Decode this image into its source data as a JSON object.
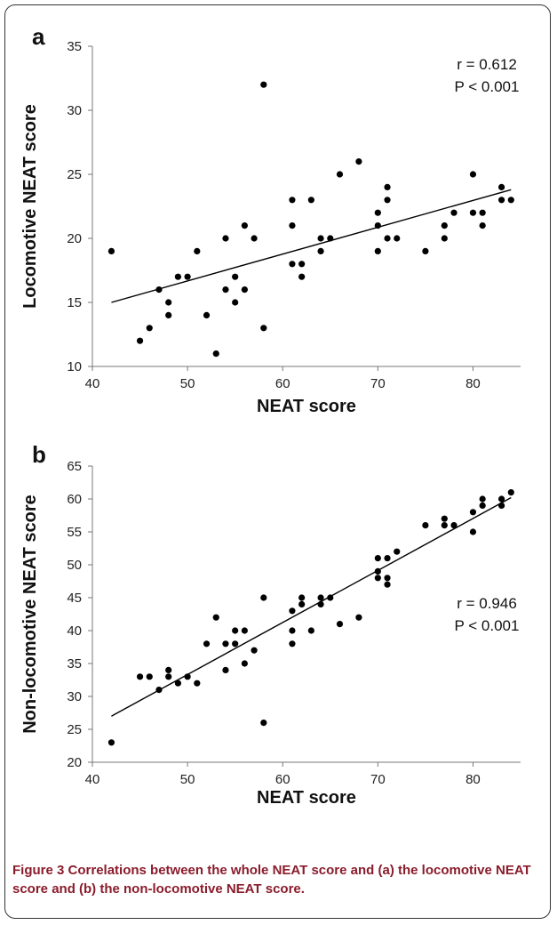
{
  "caption": {
    "label": "Figure 3",
    "text": "Correlations between the whole NEAT score and (a) the locomotive NEAT score and (b) the non-locomotive NEAT score."
  },
  "chart_data": [
    {
      "type": "scatter",
      "panel": "a",
      "xlabel": "NEAT score",
      "ylabel": "Locomotive NEAT score",
      "xlim": [
        40,
        85
      ],
      "ylim": [
        10,
        35
      ],
      "xticks": [
        40,
        50,
        60,
        70,
        80
      ],
      "yticks": [
        10,
        15,
        20,
        25,
        30,
        35
      ],
      "grid": false,
      "stats": [
        "r = 0.612",
        "P < 0.001"
      ],
      "trendline": {
        "x": [
          42,
          84
        ],
        "y": [
          15.0,
          23.8
        ]
      },
      "points": [
        [
          42,
          19
        ],
        [
          45,
          12
        ],
        [
          46,
          13
        ],
        [
          47,
          16
        ],
        [
          48,
          15
        ],
        [
          48,
          14
        ],
        [
          49,
          17
        ],
        [
          50,
          17
        ],
        [
          51,
          19
        ],
        [
          52,
          14
        ],
        [
          53,
          11
        ],
        [
          54,
          20
        ],
        [
          54,
          16
        ],
        [
          55,
          17
        ],
        [
          55,
          15
        ],
        [
          56,
          21
        ],
        [
          56,
          16
        ],
        [
          57,
          20
        ],
        [
          58,
          32
        ],
        [
          58,
          13
        ],
        [
          61,
          23
        ],
        [
          61,
          21
        ],
        [
          61,
          18
        ],
        [
          62,
          18
        ],
        [
          62,
          17
        ],
        [
          63,
          23
        ],
        [
          64,
          20
        ],
        [
          64,
          19
        ],
        [
          65,
          20
        ],
        [
          66,
          25
        ],
        [
          68,
          26
        ],
        [
          70,
          22
        ],
        [
          70,
          21
        ],
        [
          70,
          19
        ],
        [
          71,
          24
        ],
        [
          71,
          23
        ],
        [
          71,
          20
        ],
        [
          72,
          20
        ],
        [
          75,
          19
        ],
        [
          77,
          21
        ],
        [
          77,
          20
        ],
        [
          78,
          22
        ],
        [
          80,
          25
        ],
        [
          80,
          22
        ],
        [
          81,
          22
        ],
        [
          81,
          21
        ],
        [
          83,
          24
        ],
        [
          83,
          23
        ],
        [
          84,
          23
        ]
      ]
    },
    {
      "type": "scatter",
      "panel": "b",
      "xlabel": "NEAT score",
      "ylabel": "Non-locomotive NEAT score",
      "xlim": [
        40,
        85
      ],
      "ylim": [
        20,
        65
      ],
      "xticks": [
        40,
        50,
        60,
        70,
        80
      ],
      "yticks": [
        20,
        25,
        30,
        35,
        40,
        45,
        50,
        55,
        60,
        65
      ],
      "grid": false,
      "stats": [
        "r = 0.946",
        "P < 0.001"
      ],
      "trendline": {
        "x": [
          42,
          84
        ],
        "y": [
          27.0,
          60.2
        ]
      },
      "points": [
        [
          42,
          23
        ],
        [
          45,
          33
        ],
        [
          46,
          33
        ],
        [
          47,
          31
        ],
        [
          48,
          34
        ],
        [
          48,
          33
        ],
        [
          49,
          32
        ],
        [
          50,
          33
        ],
        [
          51,
          32
        ],
        [
          52,
          38
        ],
        [
          53,
          42
        ],
        [
          54,
          38
        ],
        [
          54,
          34
        ],
        [
          55,
          40
        ],
        [
          55,
          38
        ],
        [
          56,
          40
        ],
        [
          56,
          35
        ],
        [
          57,
          37
        ],
        [
          58,
          45
        ],
        [
          58,
          26
        ],
        [
          61,
          43
        ],
        [
          61,
          40
        ],
        [
          61,
          38
        ],
        [
          62,
          45
        ],
        [
          62,
          44
        ],
        [
          63,
          40
        ],
        [
          64,
          45
        ],
        [
          64,
          44
        ],
        [
          65,
          45
        ],
        [
          66,
          41
        ],
        [
          68,
          42
        ],
        [
          70,
          51
        ],
        [
          70,
          49
        ],
        [
          70,
          48
        ],
        [
          71,
          51
        ],
        [
          71,
          48
        ],
        [
          71,
          47
        ],
        [
          72,
          52
        ],
        [
          75,
          56
        ],
        [
          77,
          57
        ],
        [
          77,
          56
        ],
        [
          78,
          56
        ],
        [
          80,
          58
        ],
        [
          80,
          55
        ],
        [
          81,
          60
        ],
        [
          81,
          59
        ],
        [
          83,
          60
        ],
        [
          83,
          59
        ],
        [
          84,
          61
        ]
      ]
    }
  ]
}
